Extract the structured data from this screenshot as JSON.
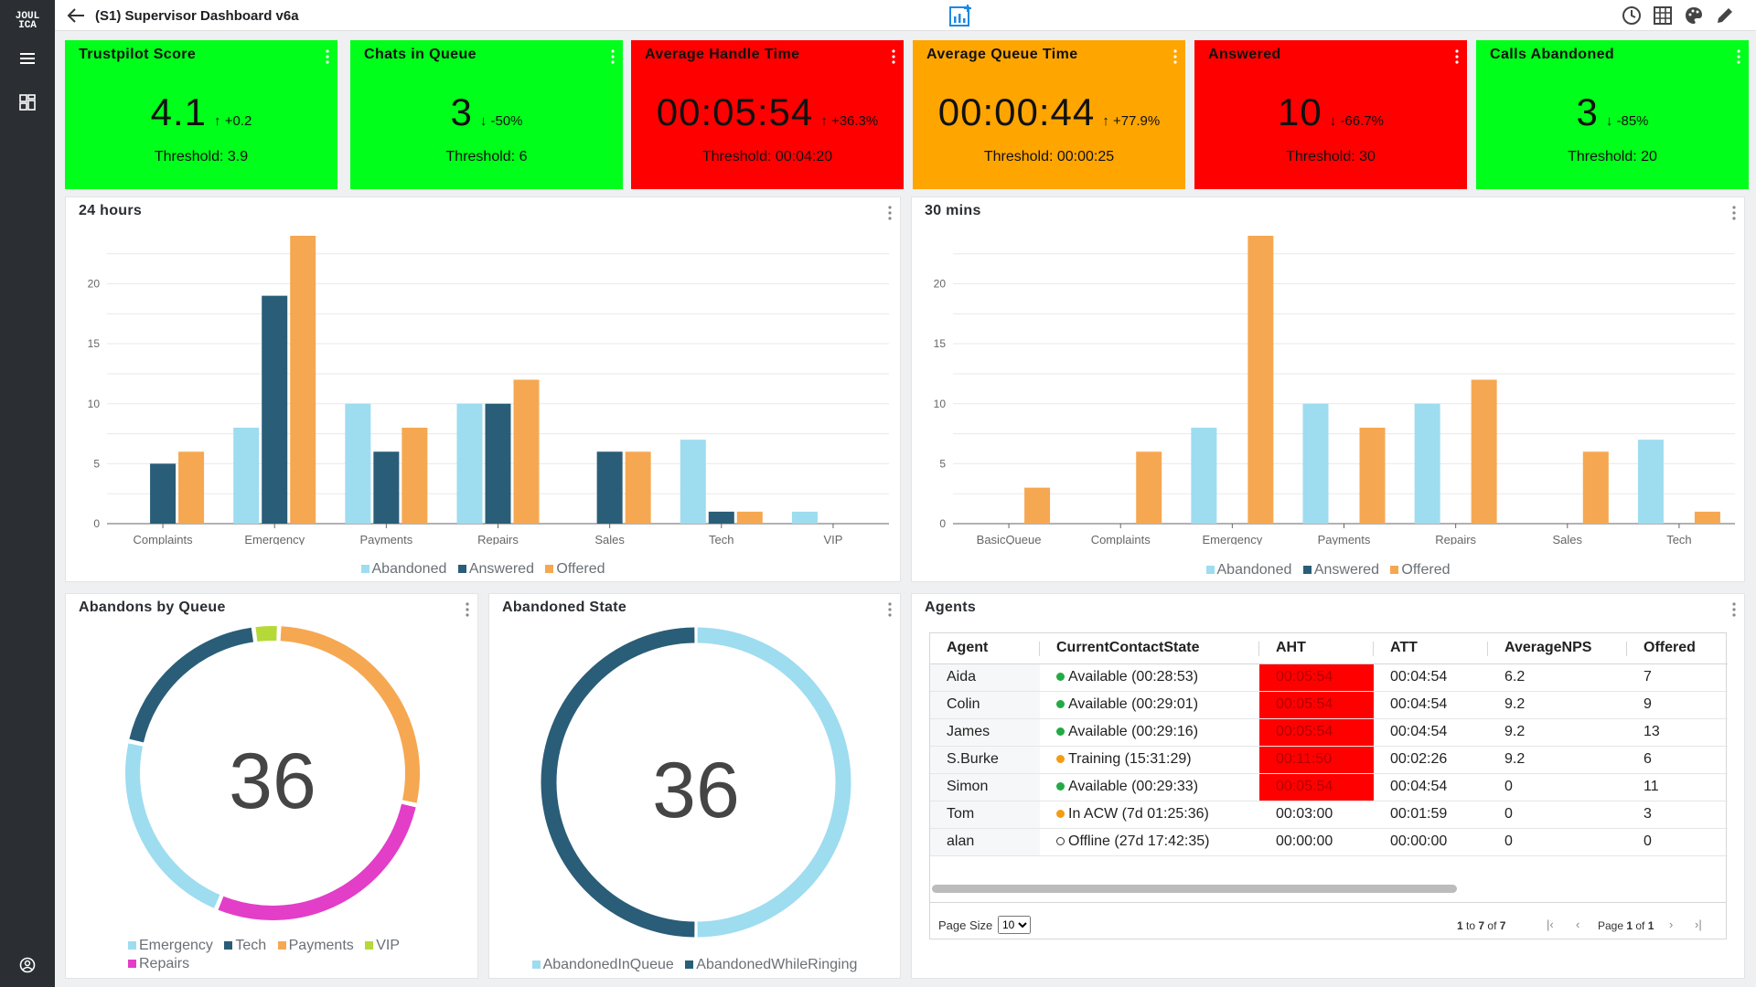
{
  "app": {
    "logo_text": "JOUL ICA",
    "title": "(S1) Supervisor Dashboard v6a"
  },
  "icons": {
    "back": "arrow-left-icon",
    "center": "chart-add-icon",
    "history": "clock-icon",
    "grid": "table-icon",
    "theme": "palette-icon",
    "edit": "pencil-icon",
    "menu": "hamburger-icon",
    "dashboards": "grid-layout-icon",
    "user": "user-circle-icon"
  },
  "kpis": [
    {
      "title": "Trustpilot Score",
      "value": "4.1",
      "arrow": "↑",
      "delta": "+0.2",
      "threshold": "Threshold: 3.9",
      "color": "#00ff1a"
    },
    {
      "title": "Chats in Queue",
      "value": "3",
      "arrow": "↓",
      "delta": "-50%",
      "threshold": "Threshold: 6",
      "color": "#00ff1a"
    },
    {
      "title": "Average Handle Time",
      "value": "00:05:54",
      "arrow": "↑",
      "delta": "+36.3%",
      "threshold": "Threshold: 00:04:20",
      "color": "#ff0000"
    },
    {
      "title": "Average Queue Time",
      "value": "00:00:44",
      "arrow": "↑",
      "delta": "+77.9%",
      "threshold": "Threshold: 00:00:25",
      "color": "#ffa500"
    },
    {
      "title": "Answered",
      "value": "10",
      "arrow": "↓",
      "delta": "-66.7%",
      "threshold": "Threshold: 30",
      "color": "#ff0000"
    },
    {
      "title": "Calls Abandoned",
      "value": "3",
      "arrow": "↓",
      "delta": "-85%",
      "threshold": "Threshold: 20",
      "color": "#00ff1a"
    }
  ],
  "colors": {
    "abandoned": "#9edcf0",
    "answered": "#2a5d78",
    "offered": "#f5a851",
    "tech": "#2a5d78",
    "payments": "#f5a851",
    "vip": "#b5d936",
    "repairs": "#e33ec7",
    "emergency": "#9edcf0"
  },
  "chart_data": [
    {
      "type": "bar",
      "title": "24 hours",
      "categories": [
        "Complaints",
        "Emergency",
        "Payments",
        "Repairs",
        "Sales",
        "Tech",
        "VIP"
      ],
      "series": [
        {
          "name": "Abandoned",
          "values": [
            0,
            8,
            10,
            10,
            0,
            7,
            1
          ]
        },
        {
          "name": "Answered",
          "values": [
            5,
            19,
            6,
            10,
            6,
            1,
            0
          ]
        },
        {
          "name": "Offered",
          "values": [
            6,
            24,
            8,
            12,
            6,
            1,
            0
          ]
        }
      ],
      "yticks": [
        0,
        5,
        10,
        15,
        20
      ],
      "ylim": [
        0,
        24
      ],
      "legend": "bottom"
    },
    {
      "type": "bar",
      "title": "30 mins",
      "categories": [
        "BasicQueue",
        "Complaints",
        "Emergency",
        "Payments",
        "Repairs",
        "Sales",
        "Tech"
      ],
      "series": [
        {
          "name": "Abandoned",
          "values": [
            0,
            0,
            8,
            10,
            10,
            0,
            7
          ]
        },
        {
          "name": "Answered",
          "values": [
            0,
            0,
            0,
            0,
            0,
            0,
            0
          ]
        },
        {
          "name": "Offered",
          "values": [
            3,
            6,
            24,
            8,
            12,
            6,
            1
          ]
        }
      ],
      "yticks": [
        0,
        5,
        10,
        15,
        20
      ],
      "ylim": [
        0,
        24
      ],
      "legend": "bottom"
    },
    {
      "type": "pie",
      "title": "Abandons by Queue",
      "center_value": "36",
      "labels": [
        "Emergency",
        "Tech",
        "Payments",
        "VIP",
        "Repairs"
      ],
      "slices": [
        {
          "name": "VIP",
          "value": 1
        },
        {
          "name": "Payments",
          "value": 10
        },
        {
          "name": "Repairs",
          "value": 10
        },
        {
          "name": "Emergency",
          "value": 8
        },
        {
          "name": "Tech",
          "value": 7
        }
      ],
      "legend": "bottom"
    },
    {
      "type": "pie",
      "title": "Abandoned State",
      "center_value": "36",
      "labels": [
        "AbandonedInQueue",
        "AbandonedWhileRinging"
      ],
      "slices": [
        {
          "name": "AbandonedInQueue",
          "value": 18
        },
        {
          "name": "AbandonedWhileRinging",
          "value": 18
        }
      ],
      "legend": "bottom"
    }
  ],
  "agents": {
    "title": "Agents",
    "columns": [
      "Agent",
      "CurrentContactState",
      "AHT",
      "ATT",
      "AverageNPS",
      "Offered"
    ],
    "rows": [
      {
        "agent": "Aida",
        "state": "Available (00:28:53)",
        "status": "available",
        "aht": "00:05:54",
        "aht_alert": true,
        "att": "00:04:54",
        "nps": "6.2",
        "offered": "7"
      },
      {
        "agent": "Colin",
        "state": "Available (00:29:01)",
        "status": "available",
        "aht": "00:05:54",
        "aht_alert": true,
        "att": "00:04:54",
        "nps": "9.2",
        "offered": "9"
      },
      {
        "agent": "James",
        "state": "Available (00:29:16)",
        "status": "available",
        "aht": "00:05:54",
        "aht_alert": true,
        "att": "00:04:54",
        "nps": "9.2",
        "offered": "13"
      },
      {
        "agent": "S.Burke",
        "state": "Training (15:31:29)",
        "status": "busy",
        "aht": "00:11:50",
        "aht_alert": true,
        "att": "00:02:26",
        "nps": "9.2",
        "offered": "6"
      },
      {
        "agent": "Simon",
        "state": "Available (00:29:33)",
        "status": "available",
        "aht": "00:05:54",
        "aht_alert": true,
        "att": "00:04:54",
        "nps": "0",
        "offered": "11"
      },
      {
        "agent": "Tom",
        "state": "In ACW (7d 01:25:36)",
        "status": "busy",
        "aht": "00:03:00",
        "aht_alert": false,
        "att": "00:01:59",
        "nps": "0",
        "offered": "3"
      },
      {
        "agent": "alan",
        "state": "Offline (27d 17:42:35)",
        "status": "offline",
        "aht": "00:00:00",
        "aht_alert": false,
        "att": "00:00:00",
        "nps": "0",
        "offered": "0"
      }
    ],
    "status_colors": {
      "available": "#22aa44",
      "busy": "#f39c12",
      "offline": "none"
    },
    "pager": {
      "page_size_label": "Page Size",
      "page_size": "10",
      "rows_from": "1",
      "rows_to": "7",
      "rows_total": "7",
      "page": "1",
      "pages": "1"
    }
  }
}
